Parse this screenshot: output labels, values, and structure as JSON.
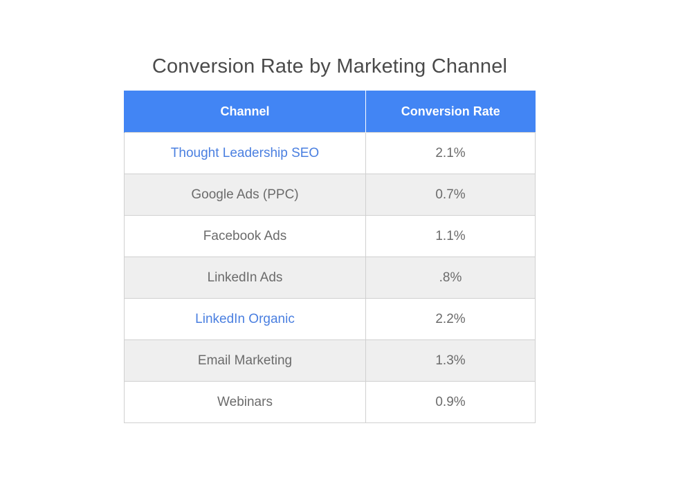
{
  "chart_data": {
    "type": "table",
    "title": "Conversion Rate by Marketing Channel",
    "columns": [
      "Channel",
      "Conversion Rate"
    ],
    "rows": [
      {
        "channel": "Thought Leadership SEO",
        "rate": "2.1%",
        "value": 2.1,
        "highlight": true
      },
      {
        "channel": "Google Ads (PPC)",
        "rate": "0.7%",
        "value": 0.7,
        "highlight": false
      },
      {
        "channel": "Facebook Ads",
        "rate": "1.1%",
        "value": 1.1,
        "highlight": false
      },
      {
        "channel": "LinkedIn Ads",
        "rate": ".8%",
        "value": 0.8,
        "highlight": false
      },
      {
        "channel": "LinkedIn Organic",
        "rate": "2.2%",
        "value": 2.2,
        "highlight": true
      },
      {
        "channel": "Email Marketing",
        "rate": "1.3%",
        "value": 1.3,
        "highlight": false
      },
      {
        "channel": "Webinars",
        "rate": "0.9%",
        "value": 0.9,
        "highlight": false
      }
    ]
  },
  "colors": {
    "header_bg": "#4285f4",
    "header_text": "#ffffff",
    "highlight_text": "#4a7fe0",
    "body_text": "#6b6b6b",
    "alt_row_bg": "#efefef"
  }
}
